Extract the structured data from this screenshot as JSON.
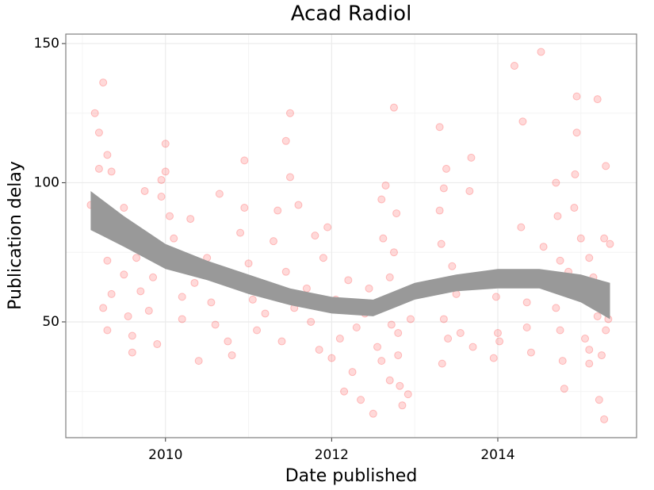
{
  "chart_data": {
    "type": "scatter",
    "title": "Acad Radiol",
    "xlabel": "Date published",
    "ylabel": "Publication delay",
    "xlim": [
      2008.8,
      2015.67
    ],
    "ylim": [
      8.4,
      153.4
    ],
    "xticks": [
      2010,
      2012,
      2014
    ],
    "yticks": [
      50,
      100,
      150
    ],
    "minor_xgrid": [
      2009,
      2011,
      2013,
      2015
    ],
    "minor_ygrid": [
      25,
      75,
      125
    ],
    "grid": true,
    "color": "#ff0000",
    "opacity": 0.15,
    "x": [
      2009.15,
      2009.2,
      2009.25,
      2009.2,
      2009.3,
      2009.1,
      2009.35,
      2009.4,
      2009.3,
      2009.35,
      2009.25,
      2009.3,
      2009.45,
      2009.5,
      2009.5,
      2009.55,
      2009.6,
      2009.6,
      2009.65,
      2009.7,
      2009.75,
      2009.8,
      2009.9,
      2009.95,
      2009.85,
      2010.0,
      2010.0,
      2009.95,
      2010.05,
      2010.1,
      2010.15,
      2010.2,
      2010.2,
      2009.9,
      2010.3,
      2010.35,
      2010.4,
      2010.5,
      2010.55,
      2010.6,
      2010.65,
      2010.7,
      2010.75,
      2010.8,
      2010.9,
      2010.95,
      2010.95,
      2011.0,
      2011.05,
      2011.1,
      2011.15,
      2011.2,
      2011.3,
      2011.35,
      2011.4,
      2011.45,
      2011.5,
      2011.5,
      2011.45,
      2011.55,
      2011.6,
      2011.7,
      2011.75,
      2011.8,
      2011.85,
      2011.9,
      2011.95,
      2012.0,
      2012.05,
      2012.1,
      2012.15,
      2012.2,
      2012.25,
      2012.3,
      2012.35,
      2012.4,
      2012.45,
      2012.5,
      2012.55,
      2012.6,
      2012.65,
      2012.7,
      2012.75,
      2012.8,
      2012.85,
      2012.95,
      2012.6,
      2012.62,
      2012.65,
      2012.7,
      2012.72,
      2012.75,
      2012.78,
      2012.8,
      2012.82,
      2012.9,
      2012.92,
      2013.3,
      2013.3,
      2013.32,
      2013.35,
      2013.35,
      2013.38,
      2013.33,
      2013.4,
      2013.45,
      2013.5,
      2013.55,
      2013.68,
      2013.66,
      2013.7,
      2013.72,
      2013.95,
      2013.98,
      2014.0,
      2014.02,
      2014.2,
      2014.3,
      2014.28,
      2014.3,
      2014.35,
      2014.35,
      2014.4,
      2014.55,
      2014.52,
      2014.7,
      2014.72,
      2014.75,
      2014.7,
      2014.75,
      2014.78,
      2014.8,
      2014.85,
      2014.95,
      2014.95,
      2014.93,
      2014.92,
      2015.0,
      2015.05,
      2015.1,
      2015.1,
      2015.15,
      2015.1,
      2015.15,
      2015.2,
      2015.2,
      2015.3,
      2015.28,
      2015.25,
      2015.28,
      2015.22,
      2015.35,
      2015.33,
      2015.3
    ],
    "y": [
      125,
      118,
      136,
      105,
      110,
      92,
      104,
      86,
      72,
      60,
      55,
      47,
      84,
      91,
      67,
      52,
      39,
      45,
      73,
      61,
      97,
      54,
      78,
      101,
      66,
      114,
      104,
      95,
      88,
      80,
      70,
      59,
      51,
      42,
      87,
      64,
      36,
      73,
      57,
      49,
      96,
      66,
      43,
      38,
      82,
      108,
      91,
      71,
      58,
      47,
      64,
      53,
      79,
      90,
      43,
      115,
      125,
      102,
      68,
      55,
      92,
      62,
      50,
      81,
      40,
      73,
      84,
      37,
      58,
      44,
      25,
      65,
      32,
      48,
      22,
      53,
      62,
      17,
      41,
      36,
      56,
      29,
      75,
      46,
      20,
      51,
      94,
      80,
      99,
      66,
      49,
      127,
      89,
      38,
      27,
      61,
      24,
      120,
      90,
      78,
      98,
      51,
      105,
      35,
      44,
      70,
      60,
      46,
      109,
      97,
      41,
      65,
      37,
      59,
      46,
      43,
      142,
      122,
      84,
      65,
      57,
      48,
      39,
      77,
      147,
      100,
      88,
      72,
      55,
      47,
      36,
      26,
      68,
      131,
      118,
      103,
      91,
      80,
      44,
      73,
      35,
      61,
      40,
      66,
      52,
      130,
      106,
      80,
      38,
      15,
      22,
      78,
      51,
      47
    ],
    "band": {
      "color": "#999999",
      "x": [
        2009.1,
        2009.5,
        2010.0,
        2010.5,
        2011.0,
        2011.5,
        2012.0,
        2012.5,
        2013.0,
        2013.5,
        2014.0,
        2014.5,
        2015.0,
        2015.35
      ],
      "lower": [
        83,
        77,
        69,
        65,
        60,
        56,
        53,
        52,
        58,
        61,
        62,
        62,
        57,
        51
      ],
      "upper": [
        97,
        88,
        78,
        72,
        67,
        62,
        59,
        58,
        64,
        67,
        69,
        69,
        67,
        64
      ]
    }
  }
}
